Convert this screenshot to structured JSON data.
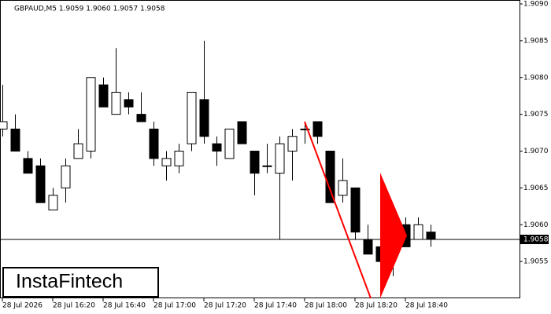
{
  "chart_data": {
    "type": "candlestick",
    "title": "GBPAUD,M5  1.9059 1.9060 1.9057 1.9058",
    "watermark": "InstaFintech",
    "categories": [
      "28 Jul 2026",
      null,
      null,
      null,
      "28 Jul 16:20",
      null,
      null,
      null,
      "28 Jul 16:40",
      null,
      null,
      null,
      "28 Jul 17:00",
      null,
      null,
      null,
      "28 Jul 17:20",
      null,
      null,
      null,
      "28 Jul 17:40",
      null,
      null,
      null,
      "28 Jul 18:00",
      null,
      null,
      null,
      "28 Jul 18:20",
      null,
      null,
      null,
      "28 Jul 18:40",
      null,
      null
    ],
    "open": [
      1.9073,
      1.9073,
      1.9069,
      1.9068,
      1.9062,
      1.9065,
      1.9069,
      1.907,
      1.9079,
      1.9075,
      1.9077,
      1.9075,
      1.9073,
      1.9068,
      1.9068,
      1.9071,
      1.9077,
      1.9071,
      1.9069,
      1.9074,
      1.907,
      1.9068,
      1.9067,
      1.907,
      1.9073,
      1.9074,
      1.907,
      1.9064,
      1.9065,
      1.9058,
      1.9057,
      1.9056,
      1.906,
      1.9058,
      1.9059
    ],
    "high": [
      1.9079,
      1.9075,
      1.907,
      1.9069,
      1.9065,
      1.9069,
      1.9073,
      1.908,
      1.908,
      1.9084,
      1.9078,
      1.9078,
      1.9074,
      1.907,
      1.9071,
      1.9078,
      1.9085,
      1.9072,
      1.9073,
      1.9074,
      1.907,
      1.9071,
      1.9072,
      1.9073,
      1.9074,
      1.9074,
      1.907,
      1.9069,
      1.9065,
      1.906,
      1.9058,
      1.9061,
      1.9061,
      1.9061,
      1.906
    ],
    "low": [
      1.9072,
      1.907,
      1.9067,
      1.9063,
      1.9062,
      1.9063,
      1.9069,
      1.9069,
      1.9076,
      1.9075,
      1.9075,
      1.9074,
      1.9068,
      1.9066,
      1.9067,
      1.907,
      1.9071,
      1.9068,
      1.9069,
      1.9071,
      1.9064,
      1.9067,
      1.9058,
      1.9066,
      1.9071,
      1.9071,
      1.9063,
      1.9063,
      1.9058,
      1.9056,
      1.9054,
      1.9053,
      1.9057,
      1.9058,
      1.9057
    ],
    "close": [
      1.9074,
      1.907,
      1.9067,
      1.9063,
      1.9064,
      1.9068,
      1.9071,
      1.908,
      1.9076,
      1.9078,
      1.9076,
      1.9074,
      1.9069,
      1.9069,
      1.907,
      1.9078,
      1.9072,
      1.907,
      1.9073,
      1.9071,
      1.9067,
      1.9068,
      1.9071,
      1.9072,
      1.9073,
      1.9072,
      1.9063,
      1.9066,
      1.9059,
      1.9056,
      1.9055,
      1.9061,
      1.9057,
      1.906,
      1.9058
    ],
    "up_color": "#ffffff",
    "down_color": "#000000",
    "last_price": 1.9058,
    "ylim": [
      1.905,
      1.909
    ],
    "yticks": [
      1.9055,
      {
        "value": 1.906,
        "label": "1.9060"
      },
      1.9065,
      {
        "value": 1.907,
        "label": "1.9070"
      },
      1.9075,
      {
        "value": 1.908,
        "label": "1.9080"
      },
      1.9085,
      {
        "value": 1.909,
        "label": "1.9090"
      }
    ]
  }
}
